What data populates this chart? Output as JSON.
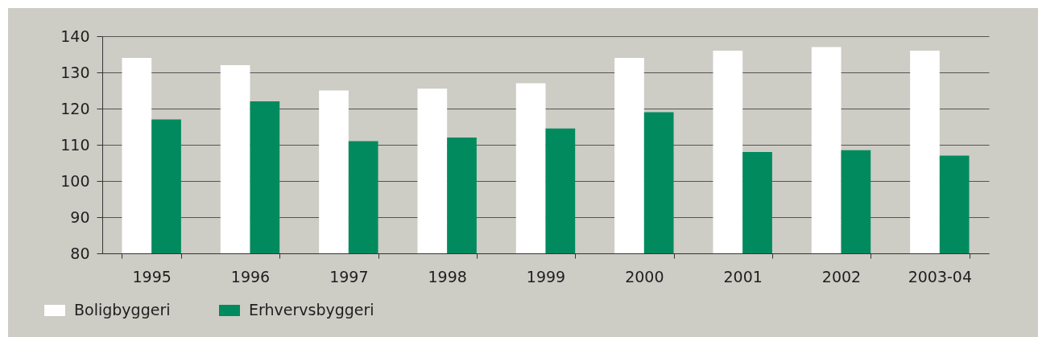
{
  "chart_data": {
    "type": "bar",
    "categories": [
      "1995",
      "1996",
      "1997",
      "1998",
      "1999",
      "2000",
      "2001",
      "2002",
      "2003-04"
    ],
    "series": [
      {
        "name": "Boligbyggeri",
        "color": "#ffffff",
        "values": [
          134,
          132,
          125,
          125.5,
          127,
          134,
          136,
          137,
          136
        ]
      },
      {
        "name": "Erhvervsbyggeri",
        "color": "#008a5e",
        "values": [
          117,
          122,
          111,
          112,
          114.5,
          119,
          108,
          108.5,
          107
        ]
      }
    ],
    "ylim": [
      80,
      140
    ],
    "yticks": [
      80,
      90,
      100,
      110,
      120,
      130,
      140
    ],
    "grid": "y",
    "legend": "bottom left"
  }
}
